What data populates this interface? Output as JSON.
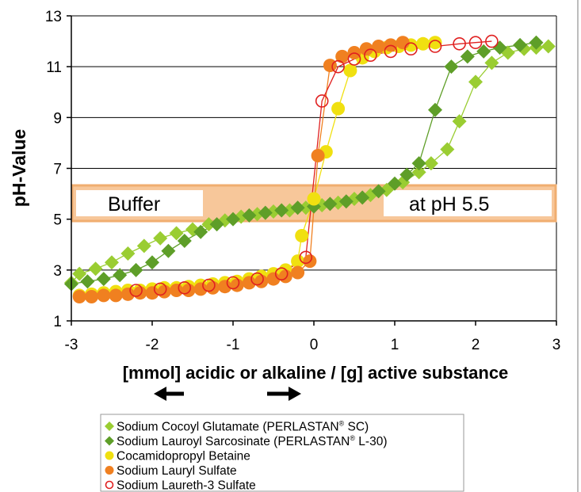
{
  "chart_data": {
    "type": "scatter",
    "title": "",
    "ylabel": "pH-Value",
    "xlabel": "[mmol] acidic or alkaline /  [g] active substance",
    "xlim": [
      -3,
      3
    ],
    "ylim": [
      1,
      13
    ],
    "xticks": [
      "-3",
      "-2",
      "-1",
      "0",
      "1",
      "2",
      "3"
    ],
    "yticks": [
      "1",
      "3",
      "5",
      "7",
      "9",
      "11",
      "13"
    ],
    "grid": "horizontal",
    "legend_position": "bottom",
    "annotations": {
      "buffer_band": {
        "ymin": 5.0,
        "ymax": 6.2,
        "label_left": "Buffer",
        "label_right": "at pH 5.5"
      },
      "arrow_left": "left-arrow",
      "arrow_right": "right-arrow"
    },
    "series": [
      {
        "name": "Sodium Cocoyl Glutamate (PERLASTAN® SC)",
        "marker": "diamond",
        "color": "#9acd32",
        "points": [
          [
            -3.0,
            2.5
          ],
          [
            -2.9,
            2.85
          ],
          [
            -2.7,
            3.05
          ],
          [
            -2.5,
            3.3
          ],
          [
            -2.3,
            3.65
          ],
          [
            -2.1,
            3.95
          ],
          [
            -1.9,
            4.25
          ],
          [
            -1.7,
            4.45
          ],
          [
            -1.5,
            4.6
          ],
          [
            -1.3,
            4.8
          ],
          [
            -1.1,
            4.95
          ],
          [
            -0.9,
            5.1
          ],
          [
            -0.7,
            5.2
          ],
          [
            -0.5,
            5.3
          ],
          [
            -0.3,
            5.35
          ],
          [
            -0.1,
            5.45
          ],
          [
            0.1,
            5.55
          ],
          [
            0.3,
            5.65
          ],
          [
            0.5,
            5.8
          ],
          [
            0.7,
            5.95
          ],
          [
            0.9,
            6.15
          ],
          [
            1.1,
            6.45
          ],
          [
            1.3,
            6.85
          ],
          [
            1.45,
            7.2
          ],
          [
            1.65,
            7.75
          ],
          [
            1.8,
            8.85
          ],
          [
            2.0,
            10.4
          ],
          [
            2.2,
            11.15
          ],
          [
            2.4,
            11.55
          ],
          [
            2.6,
            11.7
          ],
          [
            2.75,
            11.75
          ],
          [
            2.9,
            11.8
          ]
        ]
      },
      {
        "name": "Sodium Lauroyl Sarcosinate (PERLASTAN® L-30)",
        "marker": "diamond",
        "color": "#5e9e28",
        "points": [
          [
            -3.0,
            2.45
          ],
          [
            -2.8,
            2.55
          ],
          [
            -2.6,
            2.65
          ],
          [
            -2.4,
            2.8
          ],
          [
            -2.2,
            3.0
          ],
          [
            -2.0,
            3.3
          ],
          [
            -1.8,
            3.75
          ],
          [
            -1.6,
            4.15
          ],
          [
            -1.4,
            4.5
          ],
          [
            -1.2,
            4.8
          ],
          [
            -1.0,
            5.0
          ],
          [
            -0.8,
            5.15
          ],
          [
            -0.6,
            5.25
          ],
          [
            -0.4,
            5.35
          ],
          [
            -0.2,
            5.45
          ],
          [
            0.0,
            5.5
          ],
          [
            0.2,
            5.6
          ],
          [
            0.4,
            5.7
          ],
          [
            0.6,
            5.85
          ],
          [
            0.8,
            6.1
          ],
          [
            1.0,
            6.4
          ],
          [
            1.15,
            6.75
          ],
          [
            1.3,
            7.2
          ],
          [
            1.5,
            9.3
          ],
          [
            1.7,
            11.0
          ],
          [
            1.9,
            11.4
          ],
          [
            2.1,
            11.6
          ],
          [
            2.3,
            11.75
          ],
          [
            2.55,
            11.85
          ],
          [
            2.75,
            11.95
          ]
        ]
      },
      {
        "name": "Cocamidopropyl Betaine",
        "marker": "circle",
        "color": "#f0e010",
        "points": [
          [
            -2.9,
            2.0
          ],
          [
            -2.75,
            2.05
          ],
          [
            -2.6,
            2.1
          ],
          [
            -2.45,
            2.15
          ],
          [
            -2.3,
            2.2
          ],
          [
            -2.15,
            2.2
          ],
          [
            -2.0,
            2.25
          ],
          [
            -1.85,
            2.3
          ],
          [
            -1.7,
            2.3
          ],
          [
            -1.55,
            2.35
          ],
          [
            -1.4,
            2.4
          ],
          [
            -1.25,
            2.45
          ],
          [
            -1.1,
            2.5
          ],
          [
            -0.95,
            2.55
          ],
          [
            -0.8,
            2.65
          ],
          [
            -0.65,
            2.75
          ],
          [
            -0.5,
            2.85
          ],
          [
            -0.35,
            3.0
          ],
          [
            -0.2,
            3.35
          ],
          [
            -0.15,
            4.35
          ],
          [
            0.0,
            5.8
          ],
          [
            0.15,
            7.65
          ],
          [
            0.3,
            9.35
          ],
          [
            0.45,
            10.85
          ],
          [
            0.6,
            11.35
          ],
          [
            0.75,
            11.6
          ],
          [
            0.9,
            11.75
          ],
          [
            1.05,
            11.8
          ],
          [
            1.2,
            11.85
          ],
          [
            1.35,
            11.9
          ],
          [
            1.5,
            11.95
          ]
        ]
      },
      {
        "name": "Sodium Lauryl Sulfate",
        "marker": "circle",
        "color": "#f08020",
        "points": [
          [
            -2.9,
            1.95
          ],
          [
            -2.75,
            1.95
          ],
          [
            -2.6,
            2.0
          ],
          [
            -2.45,
            2.0
          ],
          [
            -2.3,
            2.05
          ],
          [
            -2.15,
            2.1
          ],
          [
            -2.0,
            2.1
          ],
          [
            -1.85,
            2.15
          ],
          [
            -1.7,
            2.2
          ],
          [
            -1.55,
            2.2
          ],
          [
            -1.4,
            2.25
          ],
          [
            -1.25,
            2.3
          ],
          [
            -1.1,
            2.35
          ],
          [
            -0.95,
            2.4
          ],
          [
            -0.8,
            2.5
          ],
          [
            -0.65,
            2.55
          ],
          [
            -0.5,
            2.65
          ],
          [
            -0.35,
            2.75
          ],
          [
            -0.2,
            2.9
          ],
          [
            -0.05,
            3.35
          ],
          [
            0.05,
            7.5
          ],
          [
            0.2,
            11.05
          ],
          [
            0.35,
            11.4
          ],
          [
            0.5,
            11.55
          ],
          [
            0.65,
            11.7
          ],
          [
            0.8,
            11.8
          ],
          [
            0.95,
            11.85
          ],
          [
            1.1,
            11.95
          ]
        ]
      },
      {
        "name": "Sodium Laureth-3 Sulfate",
        "marker": "open-circle",
        "color": "#e02020",
        "points": [
          [
            -2.2,
            2.2
          ],
          [
            -1.9,
            2.25
          ],
          [
            -1.6,
            2.3
          ],
          [
            -1.3,
            2.4
          ],
          [
            -1.0,
            2.5
          ],
          [
            -0.7,
            2.65
          ],
          [
            -0.4,
            2.85
          ],
          [
            -0.1,
            3.5
          ],
          [
            0.1,
            9.65
          ],
          [
            0.3,
            11.0
          ],
          [
            0.5,
            11.3
          ],
          [
            0.7,
            11.45
          ],
          [
            0.95,
            11.6
          ],
          [
            1.2,
            11.7
          ],
          [
            1.5,
            11.8
          ],
          [
            1.8,
            11.9
          ],
          [
            2.0,
            11.95
          ],
          [
            2.2,
            12.0
          ]
        ]
      }
    ]
  },
  "legend": {
    "items": [
      {
        "label": "Sodium Cocoyl Glutamate (PERLASTAN",
        "sup": "®",
        "tail": "  SC)"
      },
      {
        "label": "Sodium Lauroyl Sarcosinate (PERLASTAN",
        "sup": "®",
        "tail": "  L-30)"
      },
      {
        "label": "Cocamidopropyl Betaine",
        "sup": "",
        "tail": ""
      },
      {
        "label": "Sodium Lauryl Sulfate",
        "sup": "",
        "tail": ""
      },
      {
        "label": "Sodium Laureth-3 Sulfate",
        "sup": "",
        "tail": ""
      }
    ]
  }
}
